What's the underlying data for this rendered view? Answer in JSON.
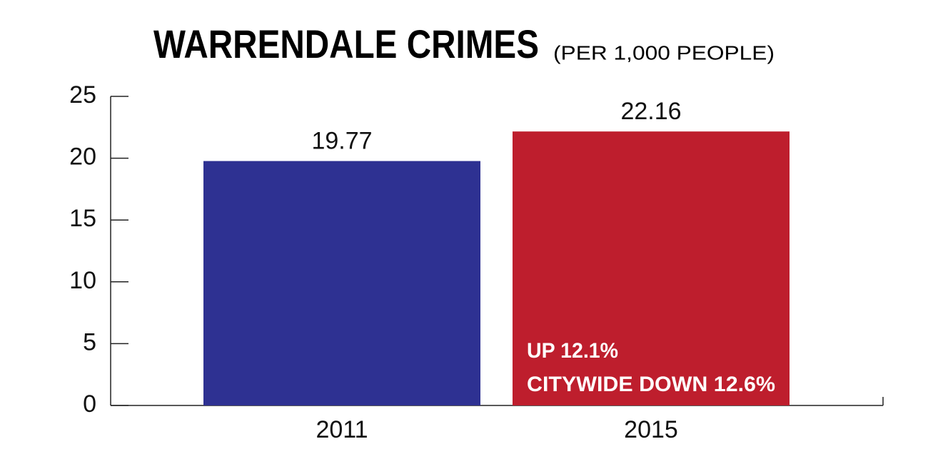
{
  "chart_data": {
    "type": "bar",
    "title": "WARRENDALE CRIMES",
    "subtitle": "(PER 1,000 PEOPLE)",
    "categories": [
      "2011",
      "2015"
    ],
    "values": [
      19.77,
      22.16
    ],
    "colors": [
      "#2e3192",
      "#be1e2d"
    ],
    "ylim": [
      0,
      25
    ],
    "yticks": [
      0,
      5,
      10,
      15,
      20,
      25
    ],
    "annotations": [
      "UP 12.1%",
      "CITYWIDE DOWN 12.6%"
    ]
  }
}
